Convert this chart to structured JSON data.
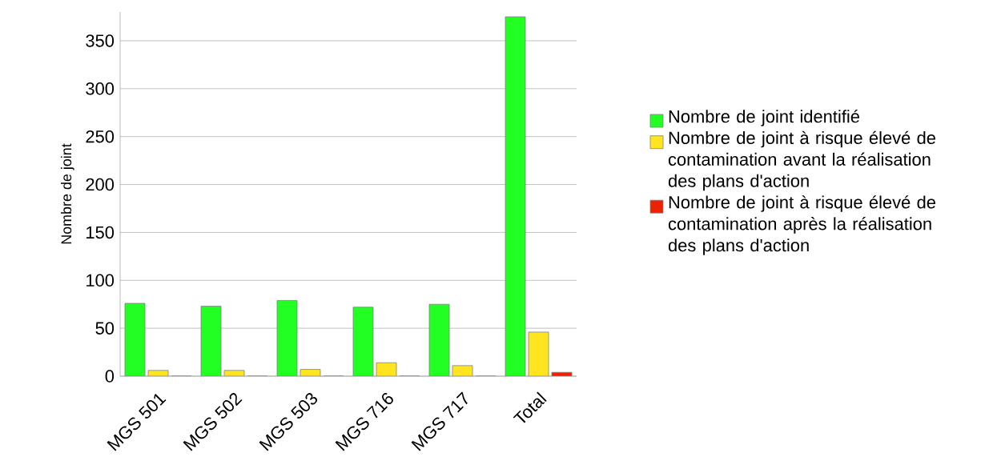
{
  "chart_data": {
    "type": "bar",
    "ylabel": "Nombre de joint",
    "categories": [
      "MGS 501",
      "MGS 502",
      "MGS 503",
      "MGS 716",
      "MGS 717",
      "Total"
    ],
    "series": [
      {
        "name": "Nombre de joint identifié",
        "color": "#22ff22",
        "values": [
          76,
          73,
          79,
          72,
          75,
          375
        ]
      },
      {
        "name": "Nombre de joint à risque élevé de contamination avant la réalisation des plans d'action",
        "color": "#ffe520",
        "values": [
          6,
          6,
          7,
          14,
          11,
          46
        ]
      },
      {
        "name": "Nombre de joint à risque élevé de contamination après la réalisation des plans d'action",
        "color": "#ee2200",
        "values": [
          0,
          0,
          0,
          0,
          0,
          4
        ]
      }
    ],
    "ylim": [
      0,
      380
    ],
    "yticks": [
      0,
      50,
      100,
      150,
      200,
      250,
      300,
      350
    ],
    "grid": "y",
    "legend": "right"
  }
}
